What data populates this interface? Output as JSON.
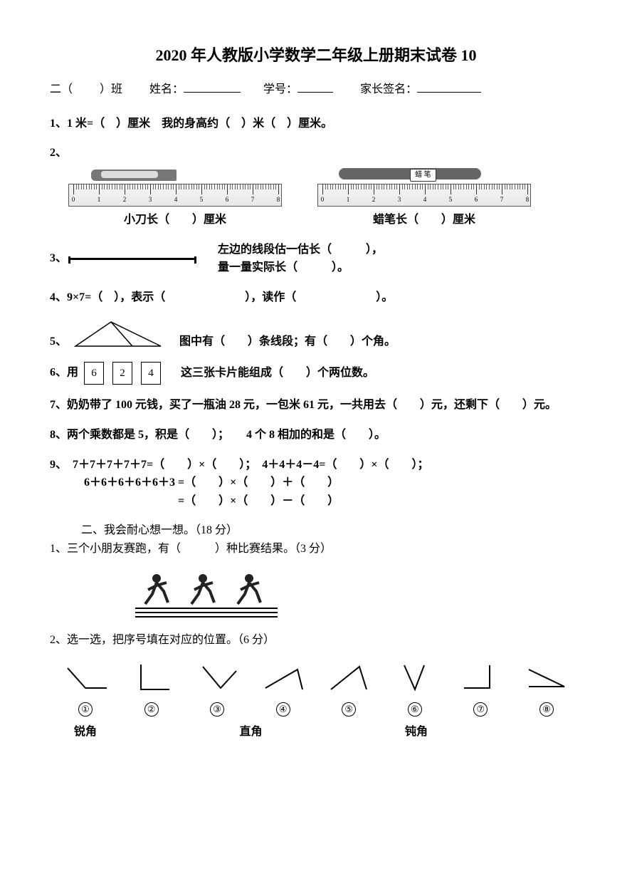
{
  "title": "2020 年人教版小学数学二年级上册期末试卷 10",
  "info": {
    "class_prefix": "二（",
    "class_suffix": "）班",
    "name_label": "姓名：",
    "id_label": "学号：",
    "parent_label": "家长签名："
  },
  "q1": "1、1 米=（　）厘米　我的身高约（　）米（　）厘米。",
  "q2_prefix": "2、",
  "ruler": {
    "ticks": [
      0,
      1,
      2,
      3,
      4,
      5,
      6,
      7,
      8
    ],
    "knife_caption": "小刀长（　　）厘米",
    "crayon_caption": "蜡笔长（　　）厘米",
    "crayon_text": "蜡 笔"
  },
  "q3": {
    "prefix": "3、",
    "line1": "左边的线段估一估长（　　　），",
    "line2": "量一量实际长（　　　）。"
  },
  "q4": "4、9×7=（　），表示（　　　　　　　），读作（　　　　　　　）。",
  "q5": {
    "prefix": "5、",
    "text": "图中有（　　）条线段；有（　　）个角。"
  },
  "q6": {
    "prefix": "6、用",
    "cards": [
      "6",
      "2",
      "4"
    ],
    "suffix": "这三张卡片能组成（　　）个两位数。"
  },
  "q7": "7、奶奶带了 100 元钱，买了一瓶油 28 元，一包米 61 元，一共用去（　　）元，还剩下（　　）元。",
  "q8": "8、两个乘数都是 5，积是（　　）；　　4 个 8 相加的和是（　　）。",
  "q9": {
    "l1": "9、　7＋7＋7＋7＋7=（　　）×（　　）；　4＋4＋4－4=（　　）×（　　）；",
    "l2": "6＋6＋6＋6＋6＋3 =（　　）×（　　）＋（　　）",
    "l3": "　　　　　　　　 =（　　）×（　　）－（　　）"
  },
  "section2": "二、我会耐心想一想。（18 分）",
  "s2q1": "1、三个小朋友赛跑，有（　　　）种比赛结果。（3 分）",
  "s2q2": "2、选一选，把序号填在对应的位置。（6 分）",
  "angle_numbers": [
    "①",
    "②",
    "③",
    "④",
    "⑤",
    "⑥",
    "⑦",
    "⑧"
  ],
  "angle_labels": {
    "acute": "锐角",
    "right": "直角",
    "obtuse": "钝角"
  }
}
